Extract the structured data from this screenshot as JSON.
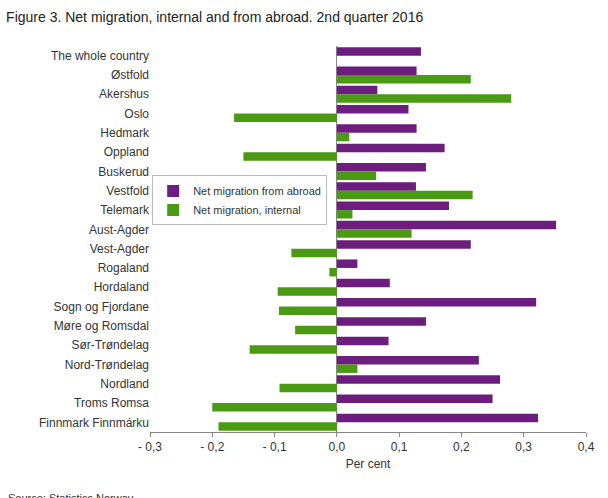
{
  "chart_data": {
    "type": "bar",
    "orientation": "horizontal",
    "title": "Figure 3. Net migration, internal and from abroad. 2nd quarter 2016",
    "x_label": "Per cent",
    "source": "Source: Statistics Norway.",
    "categories": [
      "The whole country",
      "Østfold",
      "Akershus",
      "Oslo",
      "Hedmark",
      "Oppland",
      "Buskerud",
      "Vestfold",
      "Telemark",
      "Aust-Agder",
      "Vest-Agder",
      "Rogaland",
      "Hordaland",
      "Sogn og Fjordane",
      "Møre og Romsdal",
      "Sør-Trøndelag",
      "Nord-Trøndelag",
      "Nordland",
      "Troms Romsa",
      "Finnmark Finnmárku"
    ],
    "series": [
      {
        "name": "Net migration from abroad",
        "color": "#6c1d7e",
        "values": [
          0.135,
          0.128,
          0.065,
          0.115,
          0.128,
          0.173,
          0.143,
          0.127,
          0.18,
          0.352,
          0.215,
          0.033,
          0.085,
          0.32,
          0.143,
          0.083,
          0.228,
          0.262,
          0.25,
          0.323
        ]
      },
      {
        "name": "Net migration, internal",
        "color": "#4a9a14",
        "values": [
          0,
          0.215,
          0.28,
          -0.165,
          0.02,
          -0.15,
          0.063,
          0.218,
          0.025,
          0.12,
          -0.073,
          -0.012,
          -0.095,
          -0.093,
          -0.067,
          -0.14,
          0.033,
          -0.092,
          -0.2,
          -0.19
        ]
      }
    ],
    "xlim": [
      -0.3,
      0.4
    ],
    "xticks": [
      {
        "value": -0.3,
        "label": "- 0,3"
      },
      {
        "value": -0.2,
        "label": "- 0,2"
      },
      {
        "value": -0.1,
        "label": "- 0,1"
      },
      {
        "value": 0,
        "label": "0,0"
      },
      {
        "value": 0.1,
        "label": "0,1"
      },
      {
        "value": 0.2,
        "label": "0,2"
      },
      {
        "value": 0.3,
        "label": "0,3"
      },
      {
        "value": 0.4,
        "label": "0,4"
      }
    ],
    "grid": false,
    "legend": "left"
  }
}
